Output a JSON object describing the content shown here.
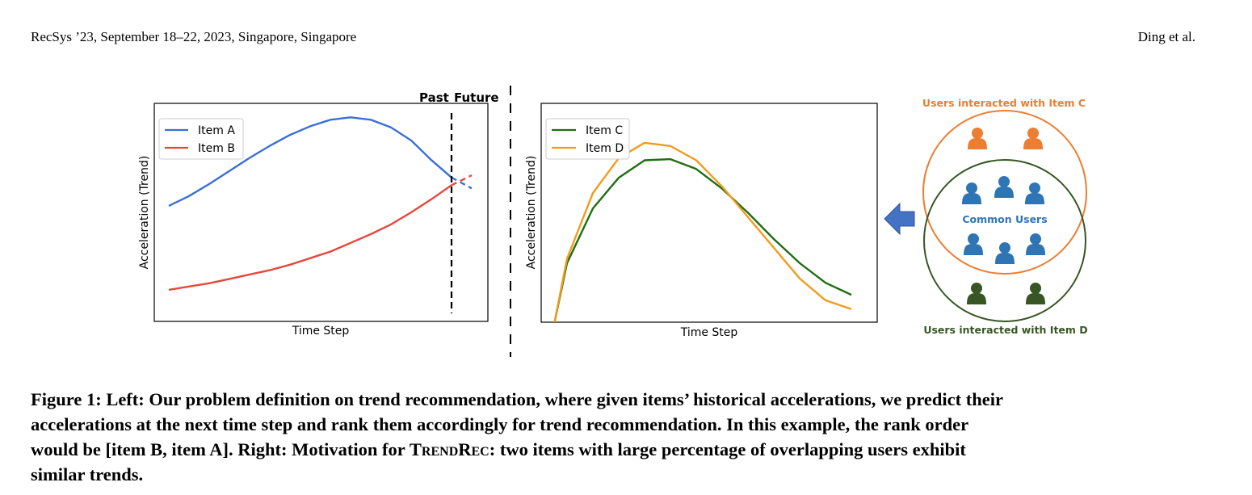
{
  "header": {
    "left": "RecSys ’23, September 18–22, 2023, Singapore, Singapore",
    "right": "Ding et al."
  },
  "figure": {
    "left_chart": {
      "past_label": "Past",
      "future_label": "Future",
      "ylabel": "Acceleration (Trend)",
      "xlabel": "Time Step",
      "legend": [
        "Item A",
        "Item B"
      ]
    },
    "right_chart": {
      "ylabel": "Acceleration (Trend)",
      "xlabel": "Time Step",
      "legend": [
        "Item C",
        "Item D"
      ]
    },
    "venn": {
      "top_label": "Users interacted with Item C",
      "common_label": "Common Users",
      "bottom_label": "Users interacted with Item D"
    }
  },
  "colors": {
    "item_a": "#3a6fd8",
    "item_b": "#e8463a",
    "item_c": "#1f6e12",
    "item_d": "#f29b1d",
    "venn_c": "#ed7d31",
    "venn_d": "#375623",
    "common": "#2e75b6",
    "arrow": "#4472c4"
  },
  "chart_data": [
    {
      "type": "line",
      "title": "",
      "xlabel": "Time Step",
      "ylabel": "Acceleration (Trend)",
      "xlim": [
        0,
        15.5
      ],
      "ylim": [
        0,
        10
      ],
      "split_x": 14,
      "series": [
        {
          "name": "Item A",
          "past": {
            "x": [
              0,
              1,
              2,
              3,
              4,
              5,
              6,
              7,
              8,
              9,
              10,
              11,
              12,
              13,
              14
            ],
            "y": [
              5.3,
              5.75,
              6.3,
              6.9,
              7.5,
              8.05,
              8.55,
              8.95,
              9.25,
              9.36,
              9.25,
              8.9,
              8.3,
              7.4,
              6.6
            ]
          },
          "future": {
            "x": [
              14,
              15
            ],
            "y": [
              6.6,
              6.1
            ]
          }
        },
        {
          "name": "Item B",
          "past": {
            "x": [
              0,
              1,
              2,
              3,
              4,
              5,
              6,
              7,
              8,
              9,
              10,
              11,
              12,
              13,
              14
            ],
            "y": [
              1.45,
              1.6,
              1.75,
              1.95,
              2.15,
              2.35,
              2.6,
              2.9,
              3.2,
              3.6,
              4.0,
              4.45,
              5.0,
              5.6,
              6.25
            ]
          },
          "future": {
            "x": [
              14,
              15
            ],
            "y": [
              6.25,
              6.7
            ]
          }
        }
      ]
    },
    {
      "type": "line",
      "title": "",
      "xlabel": "Time Step",
      "ylabel": "Acceleration (Trend)",
      "xlim": [
        0,
        13
      ],
      "ylim": [
        0,
        10
      ],
      "series": [
        {
          "name": "Item C",
          "x": [
            0.5,
            1,
            2,
            3,
            4,
            5,
            6,
            7,
            8,
            9,
            10,
            11,
            12
          ],
          "y": [
            -0.1,
            2.7,
            5.2,
            6.6,
            7.4,
            7.45,
            7.0,
            6.1,
            5.0,
            3.8,
            2.7,
            1.8,
            1.25
          ]
        },
        {
          "name": "Item D",
          "x": [
            0.5,
            1,
            2,
            3,
            4,
            5,
            6,
            7,
            8,
            9,
            10,
            11,
            12
          ],
          "y": [
            -0.1,
            2.9,
            5.9,
            7.5,
            8.2,
            8.05,
            7.4,
            6.2,
            4.8,
            3.4,
            2.0,
            1.0,
            0.6
          ]
        }
      ]
    }
  ],
  "caption": {
    "line1": "Figure 1: Left: Our problem definition on trend recommendation, where given items’ historical accelerations, we predict their",
    "line2": "accelerations at the next time step and rank them accordingly for trend recommendation. In this example, the rank order",
    "line3_a": "would be [item B, item A]. Right: Motivation for ",
    "line3_sc": "TrendRec",
    "line3_b": ": two items with large percentage of overlapping users exhibit",
    "line4": "similar trends."
  }
}
